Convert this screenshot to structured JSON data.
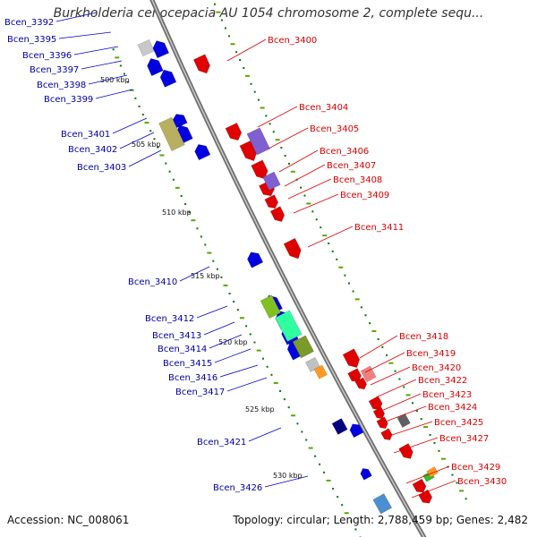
{
  "title": "Burkholderia cenocepacia AU 1054 chromosome 2, complete sequ...",
  "accession": "Accession: NC_008061",
  "summary": "Topology: circular; Length: 2,788,459 bp; Genes: 2,482",
  "colors": {
    "forward": "#e00000",
    "reverse": "#0000e0",
    "axis": "#888888",
    "left_label": "#0000aa",
    "right_label": "#dd0000",
    "ticks": "#007700"
  },
  "kbp_ticks": [
    "500 kbp",
    "505 kbp",
    "510 kbp",
    "515 kbp",
    "520 kbp",
    "525 kbp",
    "530 kbp"
  ],
  "left_genes": [
    "Bcen_3392",
    "Bcen_3395",
    "Bcen_3396",
    "Bcen_3397",
    "Bcen_3398",
    "Bcen_3399",
    "Bcen_3401",
    "Bcen_3402",
    "Bcen_3403",
    "Bcen_3410",
    "Bcen_3412",
    "Bcen_3413",
    "Bcen_3414",
    "Bcen_3415",
    "Bcen_3416",
    "Bcen_3417",
    "Bcen_3421",
    "Bcen_3426"
  ],
  "right_genes": [
    "Bcen_3400",
    "Bcen_3404",
    "Bcen_3405",
    "Bcen_3406",
    "Bcen_3407",
    "Bcen_3408",
    "Bcen_3409",
    "Bcen_3411",
    "Bcen_3418",
    "Bcen_3419",
    "Bcen_3420",
    "Bcen_3422",
    "Bcen_3423",
    "Bcen_3424",
    "Bcen_3425",
    "Bcen_3427",
    "Bcen_3429",
    "Bcen_3430"
  ]
}
